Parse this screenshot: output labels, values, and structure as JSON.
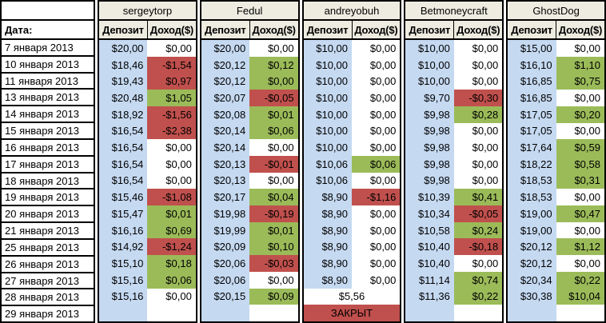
{
  "table": {
    "date_header": "Дата:",
    "deposit_header": "Депозит",
    "income_header": "Доход($)",
    "colors": {
      "header_bg": "#EEECE1",
      "deposit_bg": "#C5D9F1",
      "gain_bg": "#9BBB59",
      "loss_bg": "#C0504D",
      "border": "#000000"
    },
    "dates": [
      "7 января 2013",
      "10 января 2013",
      "11 января 2013",
      "13 января 2013",
      "14 января 2013",
      "15 января 2013",
      "16 января 2013",
      "17 января 2013",
      "18 января 2013",
      "19 января 2013",
      "20 января 2013",
      "21 января 2013",
      "25 января 2013",
      "26 января 2013",
      "27 января 2013",
      "28 января 2013",
      "29 января 2013"
    ],
    "traders": [
      {
        "name": "sergeytorp",
        "rows": [
          {
            "deposit": "$20,00",
            "income": "$0,00",
            "state": "neutral"
          },
          {
            "deposit": "$18,46",
            "income": "-$1,54",
            "state": "loss"
          },
          {
            "deposit": "$19,43",
            "income": "$0,97",
            "state": "loss"
          },
          {
            "deposit": "$20,48",
            "income": "$1,05",
            "state": "gain"
          },
          {
            "deposit": "$18,92",
            "income": "-$1,56",
            "state": "loss"
          },
          {
            "deposit": "$16,54",
            "income": "-$2,38",
            "state": "loss"
          },
          {
            "deposit": "$16,54",
            "income": "$0,00",
            "state": "neutral"
          },
          {
            "deposit": "$16,54",
            "income": "$0,00",
            "state": "neutral"
          },
          {
            "deposit": "$16,54",
            "income": "$0,00",
            "state": "neutral"
          },
          {
            "deposit": "$15,46",
            "income": "-$1,08",
            "state": "loss"
          },
          {
            "deposit": "$15,47",
            "income": "$0,01",
            "state": "gain"
          },
          {
            "deposit": "$16,16",
            "income": "$0,69",
            "state": "gain"
          },
          {
            "deposit": "$14,92",
            "income": "-$1,24",
            "state": "loss"
          },
          {
            "deposit": "$15,10",
            "income": "$0,18",
            "state": "gain"
          },
          {
            "deposit": "$15,16",
            "income": "$0,06",
            "state": "gain"
          },
          {
            "deposit": "$15,16",
            "income": "$0,00",
            "state": "neutral"
          },
          {
            "deposit": "",
            "income": "",
            "state": "neutral"
          }
        ]
      },
      {
        "name": "Fedul",
        "rows": [
          {
            "deposit": "$20,00",
            "income": "$0,00",
            "state": "neutral"
          },
          {
            "deposit": "$20,12",
            "income": "$0,12",
            "state": "gain"
          },
          {
            "deposit": "$20,12",
            "income": "$0,00",
            "state": "gain"
          },
          {
            "deposit": "$20,07",
            "income": "-$0,05",
            "state": "loss"
          },
          {
            "deposit": "$20,08",
            "income": "$0,01",
            "state": "gain"
          },
          {
            "deposit": "$20,14",
            "income": "$0,06",
            "state": "gain"
          },
          {
            "deposit": "$20,14",
            "income": "$0,00",
            "state": "neutral"
          },
          {
            "deposit": "$20,13",
            "income": "-$0,01",
            "state": "loss"
          },
          {
            "deposit": "$20,13",
            "income": "$0,00",
            "state": "neutral"
          },
          {
            "deposit": "$20,17",
            "income": "$0,04",
            "state": "gain"
          },
          {
            "deposit": "$19,98",
            "income": "-$0,19",
            "state": "loss"
          },
          {
            "deposit": "$19,99",
            "income": "$0,01",
            "state": "gain"
          },
          {
            "deposit": "$20,09",
            "income": "$0,10",
            "state": "gain"
          },
          {
            "deposit": "$20,06",
            "income": "-$0,03",
            "state": "loss"
          },
          {
            "deposit": "$20,06",
            "income": "$0,00",
            "state": "neutral"
          },
          {
            "deposit": "$20,15",
            "income": "$0,09",
            "state": "gain"
          },
          {
            "deposit": "",
            "income": "",
            "state": "neutral"
          }
        ]
      },
      {
        "name": "andreyobuh",
        "rows": [
          {
            "deposit": "$10,00",
            "income": "$0,00",
            "state": "neutral"
          },
          {
            "deposit": "$10,00",
            "income": "$0,00",
            "state": "neutral"
          },
          {
            "deposit": "$10,00",
            "income": "$0,00",
            "state": "neutral"
          },
          {
            "deposit": "$10,00",
            "income": "$0,00",
            "state": "neutral"
          },
          {
            "deposit": "$10,00",
            "income": "$0,00",
            "state": "neutral"
          },
          {
            "deposit": "$10,00",
            "income": "$0,00",
            "state": "neutral"
          },
          {
            "deposit": "$10,00",
            "income": "$0,00",
            "state": "neutral"
          },
          {
            "deposit": "$10,06",
            "income": "$0,06",
            "state": "gain"
          },
          {
            "deposit": "$10,06",
            "income": "$0,00",
            "state": "neutral"
          },
          {
            "deposit": "$8,90",
            "income": "-$1,16",
            "state": "loss"
          },
          {
            "deposit": "$8,90",
            "income": "$0,00",
            "state": "neutral"
          },
          {
            "deposit": "$8,90",
            "income": "$0,00",
            "state": "neutral"
          },
          {
            "deposit": "$8,90",
            "income": "$0,00",
            "state": "neutral"
          },
          {
            "deposit": "$8,90",
            "income": "$0,00",
            "state": "neutral"
          },
          {
            "deposit": "$8,90",
            "income": "$0,00",
            "state": "neutral"
          },
          {
            "merged": "$5,56",
            "state": "neutral"
          },
          {
            "merged": "ЗАКРЫТ",
            "state": "loss"
          }
        ]
      },
      {
        "name": "Betmoneycraft",
        "rows": [
          {
            "deposit": "$10,00",
            "income": "$0,00",
            "state": "neutral"
          },
          {
            "deposit": "$10,00",
            "income": "$0,00",
            "state": "neutral"
          },
          {
            "deposit": "$10,00",
            "income": "$0,00",
            "state": "neutral"
          },
          {
            "deposit": "$9,70",
            "income": "-$0,30",
            "state": "loss"
          },
          {
            "deposit": "$9,98",
            "income": "$0,28",
            "state": "gain"
          },
          {
            "deposit": "$9,98",
            "income": "$0,00",
            "state": "neutral"
          },
          {
            "deposit": "$9,98",
            "income": "$0,00",
            "state": "neutral"
          },
          {
            "deposit": "$9,98",
            "income": "$0,00",
            "state": "neutral"
          },
          {
            "deposit": "$9,98",
            "income": "$0,00",
            "state": "neutral"
          },
          {
            "deposit": "$10,39",
            "income": "$0,41",
            "state": "gain"
          },
          {
            "deposit": "$10,34",
            "income": "-$0,05",
            "state": "loss"
          },
          {
            "deposit": "$10,58",
            "income": "$0,24",
            "state": "gain"
          },
          {
            "deposit": "$10,40",
            "income": "-$0,18",
            "state": "loss"
          },
          {
            "deposit": "$10,40",
            "income": "$0,00",
            "state": "neutral"
          },
          {
            "deposit": "$11,14",
            "income": "$0,74",
            "state": "gain"
          },
          {
            "deposit": "$11,36",
            "income": "$0,22",
            "state": "gain"
          },
          {
            "deposit": "",
            "income": "",
            "state": "neutral"
          }
        ]
      },
      {
        "name": "GhostDog",
        "rows": [
          {
            "deposit": "$15,00",
            "income": "$0,00",
            "state": "neutral"
          },
          {
            "deposit": "$16,10",
            "income": "$1,10",
            "state": "gain"
          },
          {
            "deposit": "$16,85",
            "income": "$0,75",
            "state": "gain"
          },
          {
            "deposit": "$16,85",
            "income": "$0,00",
            "state": "neutral"
          },
          {
            "deposit": "$17,05",
            "income": "$0,20",
            "state": "gain"
          },
          {
            "deposit": "$17,05",
            "income": "$0,00",
            "state": "neutral"
          },
          {
            "deposit": "$17,64",
            "income": "$0,59",
            "state": "gain"
          },
          {
            "deposit": "$18,22",
            "income": "$0,58",
            "state": "gain"
          },
          {
            "deposit": "$18,53",
            "income": "$0,31",
            "state": "gain"
          },
          {
            "deposit": "$18,53",
            "income": "$0,00",
            "state": "neutral"
          },
          {
            "deposit": "$19,00",
            "income": "$0,47",
            "state": "gain"
          },
          {
            "deposit": "$19,00",
            "income": "$0,00",
            "state": "neutral"
          },
          {
            "deposit": "$20,12",
            "income": "$1,12",
            "state": "gain"
          },
          {
            "deposit": "$20,12",
            "income": "$0,00",
            "state": "neutral"
          },
          {
            "deposit": "$20,34",
            "income": "$0,22",
            "state": "gain"
          },
          {
            "deposit": "$30,38",
            "income": "$10,04",
            "state": "gain"
          },
          {
            "deposit": "",
            "income": "",
            "state": "neutral"
          }
        ]
      }
    ]
  }
}
